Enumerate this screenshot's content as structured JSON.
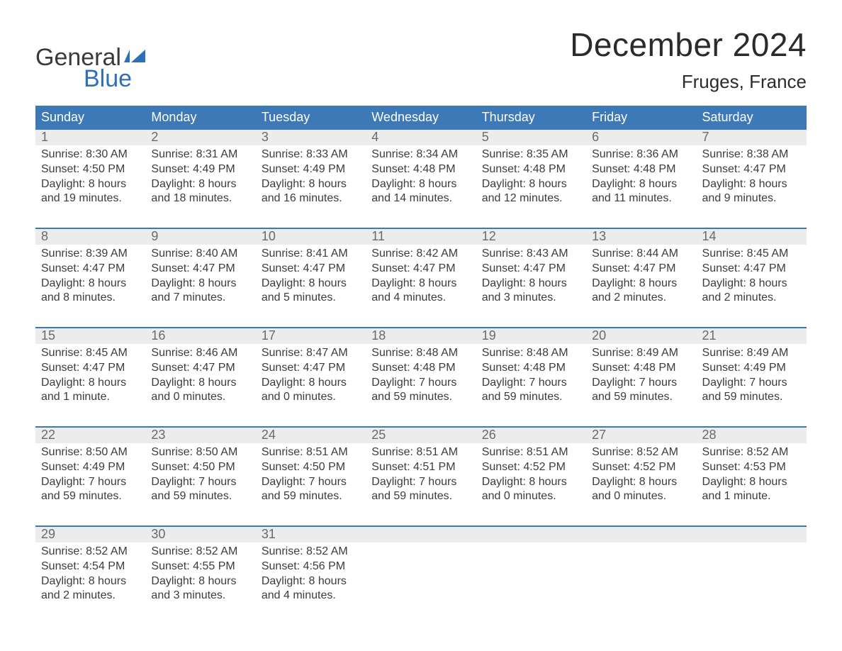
{
  "brand": {
    "word1": "General",
    "word2": "Blue",
    "icon_color": "#2d70b5"
  },
  "title": "December 2024",
  "location": "Fruges, France",
  "colors": {
    "header_bg": "#3c79b6",
    "header_text": "#ffffff",
    "daynum_bg": "#ececec",
    "daynum_text": "#6a6a6c",
    "body_text": "#3c3c3e",
    "week_border": "#3c79b6"
  },
  "day_headers": [
    "Sunday",
    "Monday",
    "Tuesday",
    "Wednesday",
    "Thursday",
    "Friday",
    "Saturday"
  ],
  "weeks": [
    [
      {
        "n": "1",
        "sunrise": "8:30 AM",
        "sunset": "4:50 PM",
        "day_l1": "Daylight: 8 hours",
        "day_l2": "and 19 minutes."
      },
      {
        "n": "2",
        "sunrise": "8:31 AM",
        "sunset": "4:49 PM",
        "day_l1": "Daylight: 8 hours",
        "day_l2": "and 18 minutes."
      },
      {
        "n": "3",
        "sunrise": "8:33 AM",
        "sunset": "4:49 PM",
        "day_l1": "Daylight: 8 hours",
        "day_l2": "and 16 minutes."
      },
      {
        "n": "4",
        "sunrise": "8:34 AM",
        "sunset": "4:48 PM",
        "day_l1": "Daylight: 8 hours",
        "day_l2": "and 14 minutes."
      },
      {
        "n": "5",
        "sunrise": "8:35 AM",
        "sunset": "4:48 PM",
        "day_l1": "Daylight: 8 hours",
        "day_l2": "and 12 minutes."
      },
      {
        "n": "6",
        "sunrise": "8:36 AM",
        "sunset": "4:48 PM",
        "day_l1": "Daylight: 8 hours",
        "day_l2": "and 11 minutes."
      },
      {
        "n": "7",
        "sunrise": "8:38 AM",
        "sunset": "4:47 PM",
        "day_l1": "Daylight: 8 hours",
        "day_l2": "and 9 minutes."
      }
    ],
    [
      {
        "n": "8",
        "sunrise": "8:39 AM",
        "sunset": "4:47 PM",
        "day_l1": "Daylight: 8 hours",
        "day_l2": "and 8 minutes."
      },
      {
        "n": "9",
        "sunrise": "8:40 AM",
        "sunset": "4:47 PM",
        "day_l1": "Daylight: 8 hours",
        "day_l2": "and 7 minutes."
      },
      {
        "n": "10",
        "sunrise": "8:41 AM",
        "sunset": "4:47 PM",
        "day_l1": "Daylight: 8 hours",
        "day_l2": "and 5 minutes."
      },
      {
        "n": "11",
        "sunrise": "8:42 AM",
        "sunset": "4:47 PM",
        "day_l1": "Daylight: 8 hours",
        "day_l2": "and 4 minutes."
      },
      {
        "n": "12",
        "sunrise": "8:43 AM",
        "sunset": "4:47 PM",
        "day_l1": "Daylight: 8 hours",
        "day_l2": "and 3 minutes."
      },
      {
        "n": "13",
        "sunrise": "8:44 AM",
        "sunset": "4:47 PM",
        "day_l1": "Daylight: 8 hours",
        "day_l2": "and 2 minutes."
      },
      {
        "n": "14",
        "sunrise": "8:45 AM",
        "sunset": "4:47 PM",
        "day_l1": "Daylight: 8 hours",
        "day_l2": "and 2 minutes."
      }
    ],
    [
      {
        "n": "15",
        "sunrise": "8:45 AM",
        "sunset": "4:47 PM",
        "day_l1": "Daylight: 8 hours",
        "day_l2": "and 1 minute."
      },
      {
        "n": "16",
        "sunrise": "8:46 AM",
        "sunset": "4:47 PM",
        "day_l1": "Daylight: 8 hours",
        "day_l2": "and 0 minutes."
      },
      {
        "n": "17",
        "sunrise": "8:47 AM",
        "sunset": "4:47 PM",
        "day_l1": "Daylight: 8 hours",
        "day_l2": "and 0 minutes."
      },
      {
        "n": "18",
        "sunrise": "8:48 AM",
        "sunset": "4:48 PM",
        "day_l1": "Daylight: 7 hours",
        "day_l2": "and 59 minutes."
      },
      {
        "n": "19",
        "sunrise": "8:48 AM",
        "sunset": "4:48 PM",
        "day_l1": "Daylight: 7 hours",
        "day_l2": "and 59 minutes."
      },
      {
        "n": "20",
        "sunrise": "8:49 AM",
        "sunset": "4:48 PM",
        "day_l1": "Daylight: 7 hours",
        "day_l2": "and 59 minutes."
      },
      {
        "n": "21",
        "sunrise": "8:49 AM",
        "sunset": "4:49 PM",
        "day_l1": "Daylight: 7 hours",
        "day_l2": "and 59 minutes."
      }
    ],
    [
      {
        "n": "22",
        "sunrise": "8:50 AM",
        "sunset": "4:49 PM",
        "day_l1": "Daylight: 7 hours",
        "day_l2": "and 59 minutes."
      },
      {
        "n": "23",
        "sunrise": "8:50 AM",
        "sunset": "4:50 PM",
        "day_l1": "Daylight: 7 hours",
        "day_l2": "and 59 minutes."
      },
      {
        "n": "24",
        "sunrise": "8:51 AM",
        "sunset": "4:50 PM",
        "day_l1": "Daylight: 7 hours",
        "day_l2": "and 59 minutes."
      },
      {
        "n": "25",
        "sunrise": "8:51 AM",
        "sunset": "4:51 PM",
        "day_l1": "Daylight: 7 hours",
        "day_l2": "and 59 minutes."
      },
      {
        "n": "26",
        "sunrise": "8:51 AM",
        "sunset": "4:52 PM",
        "day_l1": "Daylight: 8 hours",
        "day_l2": "and 0 minutes."
      },
      {
        "n": "27",
        "sunrise": "8:52 AM",
        "sunset": "4:52 PM",
        "day_l1": "Daylight: 8 hours",
        "day_l2": "and 0 minutes."
      },
      {
        "n": "28",
        "sunrise": "8:52 AM",
        "sunset": "4:53 PM",
        "day_l1": "Daylight: 8 hours",
        "day_l2": "and 1 minute."
      }
    ],
    [
      {
        "n": "29",
        "sunrise": "8:52 AM",
        "sunset": "4:54 PM",
        "day_l1": "Daylight: 8 hours",
        "day_l2": "and 2 minutes."
      },
      {
        "n": "30",
        "sunrise": "8:52 AM",
        "sunset": "4:55 PM",
        "day_l1": "Daylight: 8 hours",
        "day_l2": "and 3 minutes."
      },
      {
        "n": "31",
        "sunrise": "8:52 AM",
        "sunset": "4:56 PM",
        "day_l1": "Daylight: 8 hours",
        "day_l2": "and 4 minutes."
      },
      null,
      null,
      null,
      null
    ]
  ],
  "labels": {
    "sunrise_prefix": "Sunrise: ",
    "sunset_prefix": "Sunset: "
  }
}
